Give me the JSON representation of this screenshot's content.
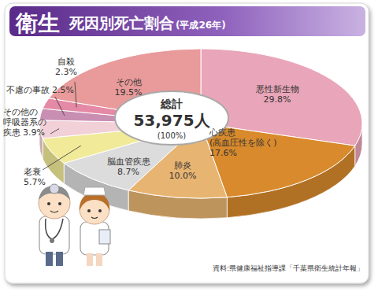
{
  "chart_data": {
    "type": "pie",
    "title": "衛生",
    "subtitle": "死因別死亡割合",
    "annotations": {
      "period": "(平成26年)",
      "total_title": "総計",
      "total": "53,975人",
      "total_percent": "(100%)",
      "source": "資料:県健康福祉指導課「千葉県衛生統計年報」"
    },
    "categories": [
      "悪性新生物",
      "心疾患\n(高血圧性を除く)",
      "肺炎",
      "脳血管疾患",
      "老衰",
      "その他の\n呼吸器系の\n疾患",
      "不慮の事故",
      "自殺",
      "その他"
    ],
    "values": [
      29.8,
      17.6,
      10.0,
      8.7,
      5.7,
      3.9,
      2.5,
      2.3,
      19.5
    ],
    "value_labels": [
      "29.8%",
      "17.6%",
      "10.0%",
      "8.7%",
      "5.7%",
      "3.9%",
      "2.5%",
      "2.3%",
      "19.5%"
    ],
    "colors": [
      "#e9a5b9",
      "#d88a2c",
      "#e8b472",
      "#dcdcdc",
      "#f1ea98",
      "#f2d0d8",
      "#c98fb2",
      "#e48aa6",
      "#e99a9a"
    ],
    "data_labels": true
  }
}
